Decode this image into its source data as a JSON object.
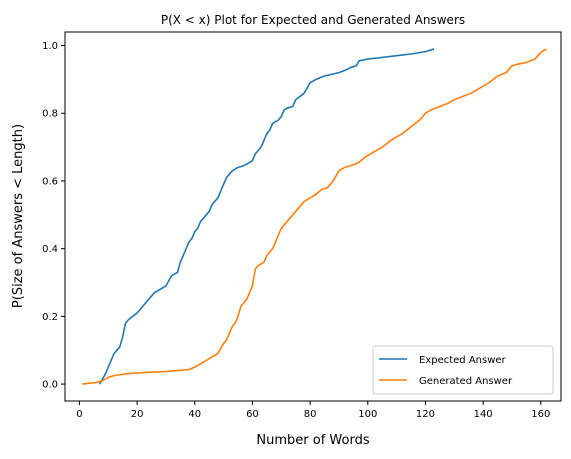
{
  "chart_data": {
    "type": "line",
    "title": "P(X < x) Plot for Expected and Generated Answers",
    "xlabel": "Number of Words",
    "ylabel": "P(Size of Answers < Length)",
    "xlim": [
      -5,
      167
    ],
    "ylim": [
      -0.05,
      1.04
    ],
    "xticks": [
      0,
      20,
      40,
      60,
      80,
      100,
      120,
      140,
      160
    ],
    "yticks": [
      0.0,
      0.2,
      0.4,
      0.6,
      0.8,
      1.0
    ],
    "xtick_labels": [
      "0",
      "20",
      "40",
      "60",
      "80",
      "100",
      "120",
      "140",
      "160"
    ],
    "ytick_labels": [
      "0.0",
      "0.2",
      "0.4",
      "0.6",
      "0.8",
      "1.0"
    ],
    "grid": false,
    "legend_position": "lower-right",
    "series": [
      {
        "name": "Expected Answer",
        "color": "#1f77b4",
        "x": [
          7,
          9,
          10,
          11,
          12,
          14,
          15,
          16,
          17,
          20,
          22,
          24,
          25,
          26,
          30,
          32,
          34,
          35,
          36,
          37,
          38,
          39,
          40,
          41,
          42,
          43,
          45,
          46,
          47,
          48,
          49,
          50,
          51,
          52,
          53,
          55,
          57,
          58,
          60,
          61,
          62,
          63,
          64,
          65,
          66,
          67,
          69,
          70,
          71,
          72,
          74,
          75,
          78,
          80,
          82,
          85,
          90,
          93,
          94,
          96,
          97,
          100,
          105,
          110,
          115,
          120,
          123
        ],
        "y": [
          0.0,
          0.03,
          0.05,
          0.07,
          0.09,
          0.11,
          0.14,
          0.18,
          0.19,
          0.21,
          0.23,
          0.25,
          0.26,
          0.27,
          0.29,
          0.32,
          0.33,
          0.36,
          0.38,
          0.4,
          0.42,
          0.43,
          0.45,
          0.46,
          0.48,
          0.49,
          0.51,
          0.53,
          0.54,
          0.55,
          0.57,
          0.59,
          0.61,
          0.62,
          0.63,
          0.64,
          0.645,
          0.65,
          0.66,
          0.68,
          0.69,
          0.7,
          0.72,
          0.74,
          0.75,
          0.77,
          0.78,
          0.79,
          0.81,
          0.815,
          0.82,
          0.84,
          0.86,
          0.89,
          0.9,
          0.91,
          0.92,
          0.93,
          0.935,
          0.94,
          0.955,
          0.96,
          0.965,
          0.97,
          0.975,
          0.982,
          0.99
        ]
      },
      {
        "name": "Generated Answer",
        "color": "#ff7f0e",
        "x": [
          1,
          6,
          8,
          10,
          12,
          16,
          20,
          25,
          30,
          34,
          38,
          40,
          42,
          44,
          46,
          48,
          50,
          51,
          52,
          53,
          54,
          55,
          56,
          57,
          58,
          59,
          60,
          61,
          62,
          63,
          64,
          65,
          66,
          67,
          68,
          69,
          70,
          71,
          72,
          73,
          74,
          75,
          76,
          77,
          78,
          80,
          82,
          84,
          86,
          88,
          90,
          92,
          94,
          97,
          99,
          101,
          103,
          105,
          108,
          110,
          112,
          115,
          118,
          120,
          122,
          125,
          128,
          130,
          133,
          136,
          138,
          140,
          142,
          145,
          148,
          150,
          152,
          155,
          158,
          160,
          162
        ],
        "y": [
          0.0,
          0.005,
          0.01,
          0.02,
          0.025,
          0.03,
          0.033,
          0.035,
          0.037,
          0.04,
          0.043,
          0.05,
          0.06,
          0.07,
          0.08,
          0.09,
          0.12,
          0.13,
          0.15,
          0.17,
          0.18,
          0.2,
          0.23,
          0.24,
          0.25,
          0.27,
          0.29,
          0.34,
          0.35,
          0.355,
          0.36,
          0.38,
          0.39,
          0.4,
          0.42,
          0.44,
          0.46,
          0.47,
          0.48,
          0.49,
          0.5,
          0.51,
          0.52,
          0.53,
          0.54,
          0.55,
          0.56,
          0.575,
          0.58,
          0.6,
          0.63,
          0.64,
          0.645,
          0.655,
          0.67,
          0.68,
          0.69,
          0.7,
          0.72,
          0.73,
          0.74,
          0.76,
          0.78,
          0.8,
          0.81,
          0.82,
          0.83,
          0.84,
          0.85,
          0.86,
          0.87,
          0.88,
          0.89,
          0.91,
          0.92,
          0.94,
          0.945,
          0.95,
          0.96,
          0.98,
          0.99
        ]
      }
    ]
  }
}
